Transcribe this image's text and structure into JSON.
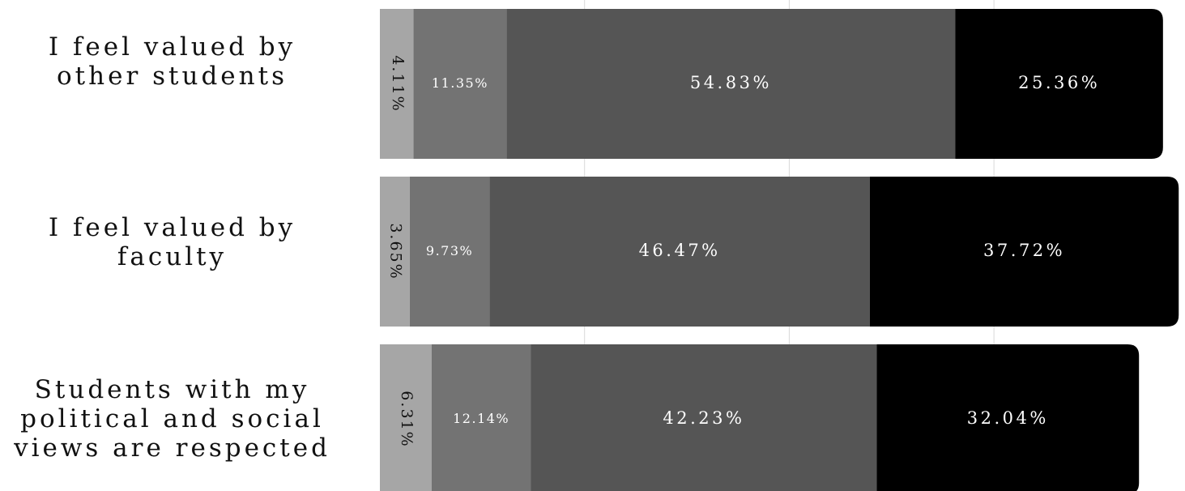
{
  "chart_data": {
    "type": "bar",
    "orientation": "horizontal",
    "stacked": true,
    "categories": [
      "I feel valued by\nother students",
      "I feel valued by\nfaculty",
      "Students with my\npolitical and social\nviews are respected"
    ],
    "series": [
      {
        "values": [
          4.11,
          3.65,
          6.31
        ],
        "labels": [
          "4.11%",
          "3.65%",
          "6.31%"
        ],
        "color": "#a6a6a6"
      },
      {
        "values": [
          11.35,
          9.73,
          12.14
        ],
        "labels": [
          "11.35%",
          "9.73%",
          "12.14%"
        ],
        "color": "#737373"
      },
      {
        "values": [
          54.83,
          46.47,
          42.23
        ],
        "labels": [
          "54.83%",
          "46.47%",
          "42.23%"
        ],
        "color": "#555555"
      },
      {
        "values": [
          25.36,
          37.72,
          32.04
        ],
        "labels": [
          "25.36%",
          "37.72%",
          "32.04%"
        ],
        "color": "#000000"
      }
    ],
    "xlim": [
      0,
      100
    ],
    "grid": true,
    "legend": "none",
    "title": "",
    "xlabel": "",
    "ylabel": ""
  }
}
